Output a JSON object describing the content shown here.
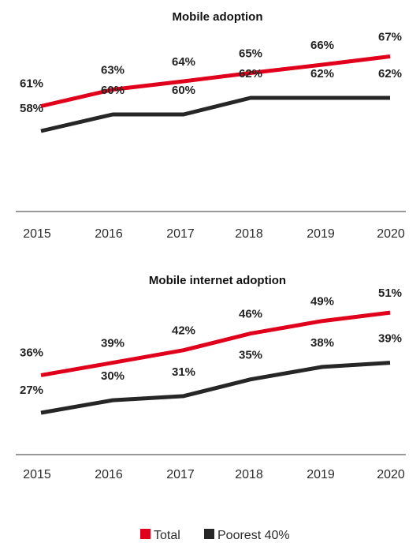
{
  "colors": {
    "total": "#e0001b",
    "poorest": "#262626",
    "axis": "#333333"
  },
  "chart_data": [
    {
      "type": "line",
      "title": "Mobile adoption",
      "xlabel": "",
      "ylabel": "",
      "categories": [
        "2015",
        "2016",
        "2017",
        "2018",
        "2019",
        "2020"
      ],
      "ylim": [
        50,
        70
      ],
      "series": [
        {
          "name": "Total",
          "color": "#e0001b",
          "values": [
            61,
            63,
            64,
            65,
            66,
            67
          ],
          "labels": [
            "61%",
            "63%",
            "64%",
            "65%",
            "66%",
            "67%"
          ]
        },
        {
          "name": "Poorest 40%",
          "color": "#262626",
          "values": [
            58,
            60,
            60,
            62,
            62,
            62
          ],
          "labels": [
            "58%",
            "60%",
            "60%",
            "62%",
            "62%",
            "62%"
          ]
        }
      ],
      "grid": false,
      "legend": "bottom-center"
    },
    {
      "type": "line",
      "title": "Mobile internet adoption",
      "xlabel": "",
      "ylabel": "",
      "categories": [
        "2015",
        "2016",
        "2017",
        "2018",
        "2019",
        "2020"
      ],
      "ylim": [
        20,
        55
      ],
      "series": [
        {
          "name": "Total",
          "color": "#e0001b",
          "values": [
            36,
            39,
            42,
            46,
            49,
            51
          ],
          "labels": [
            "36%",
            "39%",
            "42%",
            "46%",
            "49%",
            "51%"
          ]
        },
        {
          "name": "Poorest 40%",
          "color": "#262626",
          "values": [
            27,
            30,
            31,
            35,
            38,
            39
          ],
          "labels": [
            "27%",
            "30%",
            "31%",
            "35%",
            "38%",
            "39%"
          ]
        }
      ],
      "grid": false,
      "legend": "bottom-center"
    }
  ],
  "legend": {
    "items": [
      {
        "label": "Total",
        "color": "#e0001b"
      },
      {
        "label": "Poorest 40%",
        "color": "#262626"
      }
    ]
  }
}
